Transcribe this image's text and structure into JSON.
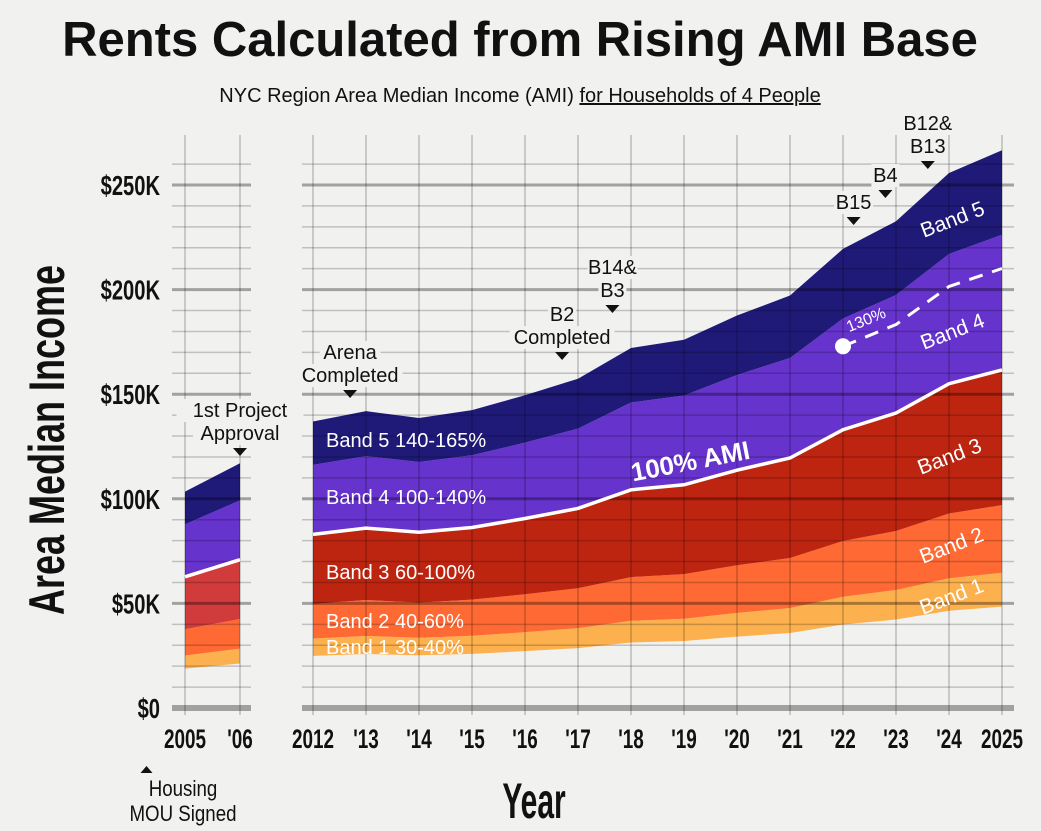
{
  "chart_data": {
    "type": "area",
    "title": "Rents Calculated from Rising AMI Base",
    "subtitle_plain": "NYC Region Area Median Income (AMI) ",
    "subtitle_underlined": "for Households of 4 People",
    "xlabel": "Year",
    "ylabel": "Area Median Income",
    "ylim": [
      0,
      260000
    ],
    "y_ticks": [
      {
        "value": 0,
        "label": "$0"
      },
      {
        "value": 50000,
        "label": "$50K"
      },
      {
        "value": 100000,
        "label": "$100K"
      },
      {
        "value": 150000,
        "label": "$150K"
      },
      {
        "value": 200000,
        "label": "$200K"
      },
      {
        "value": 250000,
        "label": "$250K"
      }
    ],
    "x_ticks": [
      {
        "year": 2005,
        "label": "2005"
      },
      {
        "year": 2006,
        "label": "'06"
      },
      {
        "year": 2012,
        "label": "2012"
      },
      {
        "year": 2013,
        "label": "'13"
      },
      {
        "year": 2014,
        "label": "'14"
      },
      {
        "year": 2015,
        "label": "'15"
      },
      {
        "year": 2016,
        "label": "'16"
      },
      {
        "year": 2017,
        "label": "'17"
      },
      {
        "year": 2018,
        "label": "'18"
      },
      {
        "year": 2019,
        "label": "'19"
      },
      {
        "year": 2020,
        "label": "'20"
      },
      {
        "year": 2021,
        "label": "'21"
      },
      {
        "year": 2022,
        "label": "'22"
      },
      {
        "year": 2023,
        "label": "'23"
      },
      {
        "year": 2024,
        "label": "'24"
      },
      {
        "year": 2025,
        "label": "2025"
      }
    ],
    "ami_100": {
      "panel_early": {
        "years": [
          2005,
          2006
        ],
        "values": [
          62700,
          70900
        ]
      },
      "panel_main": {
        "years": [
          2012,
          2013,
          2014,
          2015,
          2016,
          2017,
          2018,
          2019,
          2020,
          2021,
          2022,
          2023,
          2024,
          2025
        ],
        "values": [
          83000,
          86000,
          84000,
          86300,
          90600,
          95400,
          104300,
          106700,
          113700,
          119500,
          133000,
          141000,
          155000,
          161600
        ]
      }
    },
    "bands": [
      {
        "name": "Band 1",
        "range": "30-40%",
        "low": 0.3,
        "high": 0.4,
        "color": "#fdb14e",
        "color_early": "#fdb14e"
      },
      {
        "name": "Band 2",
        "range": "40-60%",
        "low": 0.4,
        "high": 0.6,
        "color": "#ff6934",
        "color_early": "#ff6934"
      },
      {
        "name": "Band 3",
        "range": "60-100%",
        "low": 0.6,
        "high": 1.0,
        "color": "#be2511",
        "color_early": "#d23b3b"
      },
      {
        "name": "Band 4",
        "range": "100-140%",
        "low": 1.0,
        "high": 1.4,
        "color": "#6633cc",
        "color_early": "#6633cc"
      },
      {
        "name": "Band 5",
        "range": "140-165%",
        "low": 1.4,
        "high": 1.65,
        "color": "#1f1a78",
        "color_early": "#1f1a78"
      }
    ],
    "ami_line_label": "100% AMI",
    "line_130": {
      "label": "130%",
      "multiplier": 1.3,
      "start_year": 2022,
      "end_year": 2025
    },
    "annotations": [
      {
        "year": 2006,
        "lines": [
          "1st Project",
          "Approval"
        ],
        "direction": "down"
      },
      {
        "year": 2012.7,
        "lines": [
          "Arena",
          "Completed"
        ],
        "direction": "down"
      },
      {
        "year": 2016.7,
        "lines": [
          "B2",
          "Completed"
        ],
        "direction": "down"
      },
      {
        "year": 2017.65,
        "lines": [
          "B14&",
          "B3"
        ],
        "direction": "down"
      },
      {
        "year": 2022.2,
        "lines": [
          "B15"
        ],
        "direction": "down"
      },
      {
        "year": 2022.8,
        "lines": [
          "B4"
        ],
        "direction": "down"
      },
      {
        "year": 2023.6,
        "lines": [
          "B12&",
          "B13"
        ],
        "direction": "down"
      },
      {
        "year": 2004.3,
        "lines": [
          "Housing",
          "MOU Signed"
        ],
        "direction": "up"
      }
    ]
  }
}
